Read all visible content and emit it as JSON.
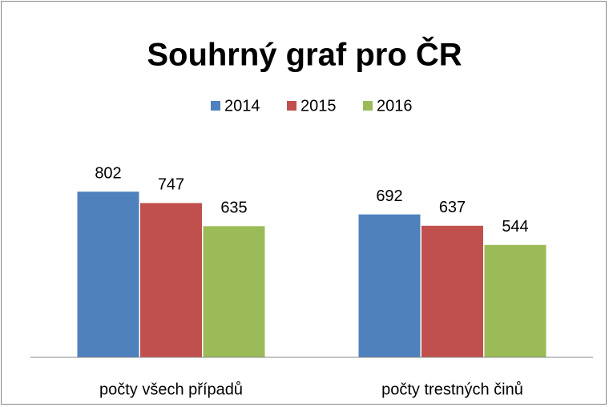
{
  "chart_data": {
    "type": "bar",
    "title": "Souhrný graf pro ČR",
    "categories": [
      "počty všech případů",
      "počty trestných činů"
    ],
    "series": [
      {
        "name": "2014",
        "color": "#4f81bd",
        "values": [
          802,
          692
        ]
      },
      {
        "name": "2015",
        "color": "#c0504d",
        "values": [
          747,
          637
        ]
      },
      {
        "name": "2016",
        "color": "#9bbb59",
        "values": [
          635,
          544
        ]
      }
    ],
    "ylim": [
      0,
      900
    ],
    "legend": "top"
  }
}
